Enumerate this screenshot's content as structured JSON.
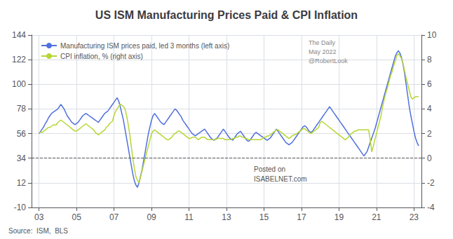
{
  "chart_data": {
    "type": "line",
    "title": "US ISM Manufacturing Prices Paid & CPI Inflation",
    "x": [
      2003,
      2003.0833,
      2003.1667,
      2003.25,
      2003.3333,
      2003.4167,
      2003.5,
      2003.5833,
      2003.6667,
      2003.75,
      2003.8333,
      2003.9167,
      2004,
      2004.0833,
      2004.1667,
      2004.25,
      2004.3333,
      2004.4167,
      2004.5,
      2004.5833,
      2004.6667,
      2004.75,
      2004.8333,
      2004.9167,
      2005,
      2005.0833,
      2005.1667,
      2005.25,
      2005.3333,
      2005.4167,
      2005.5,
      2005.5833,
      2005.6667,
      2005.75,
      2005.8333,
      2005.9167,
      2006,
      2006.0833,
      2006.1667,
      2006.25,
      2006.3333,
      2006.4167,
      2006.5,
      2006.5833,
      2006.6667,
      2006.75,
      2006.8333,
      2006.9167,
      2007,
      2007.0833,
      2007.1667,
      2007.25,
      2007.3333,
      2007.4167,
      2007.5,
      2007.5833,
      2007.6667,
      2007.75,
      2007.8333,
      2007.9167,
      2008,
      2008.0833,
      2008.1667,
      2008.25,
      2008.3333,
      2008.4167,
      2008.5,
      2008.5833,
      2008.6667,
      2008.75,
      2008.8333,
      2008.9167,
      2009,
      2009.0833,
      2009.1667,
      2009.25,
      2009.3333,
      2009.4167,
      2009.5,
      2009.5833,
      2009.6667,
      2009.75,
      2009.8333,
      2009.9167,
      2010,
      2010.0833,
      2010.1667,
      2010.25,
      2010.3333,
      2010.4167,
      2010.5,
      2010.5833,
      2010.6667,
      2010.75,
      2010.8333,
      2010.9167,
      2011,
      2011.0833,
      2011.1667,
      2011.25,
      2011.3333,
      2011.4167,
      2011.5,
      2011.5833,
      2011.6667,
      2011.75,
      2011.8333,
      2011.9167,
      2012,
      2012.0833,
      2012.1667,
      2012.25,
      2012.3333,
      2012.4167,
      2012.5,
      2012.5833,
      2012.6667,
      2012.75,
      2012.8333,
      2012.9167,
      2013,
      2013.0833,
      2013.1667,
      2013.25,
      2013.3333,
      2013.4167,
      2013.5,
      2013.5833,
      2013.6667,
      2013.75,
      2013.8333,
      2013.9167,
      2014,
      2014.0833,
      2014.1667,
      2014.25,
      2014.3333,
      2014.4167,
      2014.5,
      2014.5833,
      2014.6667,
      2014.75,
      2014.8333,
      2014.9167,
      2015,
      2015.0833,
      2015.1667,
      2015.25,
      2015.3333,
      2015.4167,
      2015.5,
      2015.5833,
      2015.6667,
      2015.75,
      2015.8333,
      2015.9167,
      2016,
      2016.0833,
      2016.1667,
      2016.25,
      2016.3333,
      2016.4167,
      2016.5,
      2016.5833,
      2016.6667,
      2016.75,
      2016.8333,
      2016.9167,
      2017,
      2017.0833,
      2017.1667,
      2017.25,
      2017.3333,
      2017.4167,
      2017.5,
      2017.5833,
      2017.6667,
      2017.75,
      2017.8333,
      2017.9167,
      2018,
      2018.0833,
      2018.1667,
      2018.25,
      2018.3333,
      2018.4167,
      2018.5,
      2018.5833,
      2018.6667,
      2018.75,
      2018.8333,
      2018.9167,
      2019,
      2019.0833,
      2019.1667,
      2019.25,
      2019.3333,
      2019.4167,
      2019.5,
      2019.5833,
      2019.6667,
      2019.75,
      2019.8333,
      2019.9167,
      2020,
      2020.0833,
      2020.1667,
      2020.25,
      2020.3333,
      2020.4167,
      2020.5,
      2020.5833,
      2020.6667,
      2020.75,
      2020.8333,
      2020.9167,
      2021,
      2021.0833,
      2021.1667,
      2021.25,
      2021.3333,
      2021.4167,
      2021.5,
      2021.5833,
      2021.6667,
      2021.75,
      2021.8333,
      2021.9167,
      2022,
      2022.0833,
      2022.1667,
      2022.25,
      2022.3333,
      2022.4167,
      2022.5,
      2022.5833,
      2022.6667,
      2022.75,
      2022.8333,
      2022.9167,
      2023,
      2023.0833,
      2023.1667,
      2023.25
    ],
    "series": [
      {
        "name": "Manufacturing ISM prices paid, led 3 months (left axis)",
        "values": [
          56,
          58,
          60,
          62,
          65,
          67,
          70,
          72,
          74,
          75,
          76,
          77,
          78,
          80,
          82,
          80,
          78,
          75,
          72,
          70,
          68,
          66,
          65,
          64,
          65,
          66,
          68,
          70,
          72,
          73,
          74,
          73,
          72,
          71,
          70,
          69,
          68,
          67,
          66,
          68,
          70,
          72,
          74,
          75,
          76,
          78,
          80,
          82,
          84,
          86,
          88,
          85,
          80,
          74,
          68,
          60,
          52,
          44,
          36,
          28,
          20,
          14,
          10,
          8,
          12,
          18,
          24,
          32,
          40,
          48,
          56,
          62,
          68,
          72,
          74,
          72,
          70,
          68,
          66,
          65,
          64,
          66,
          68,
          70,
          72,
          74,
          76,
          78,
          77,
          75,
          73,
          71,
          68,
          66,
          64,
          62,
          60,
          58,
          56,
          55,
          54,
          55,
          56,
          57,
          58,
          59,
          60,
          58,
          56,
          54,
          52,
          51,
          50,
          51,
          52,
          54,
          56,
          58,
          60,
          58,
          56,
          54,
          52,
          51,
          50,
          52,
          54,
          56,
          57,
          58,
          56,
          54,
          52,
          50,
          49,
          50,
          52,
          54,
          56,
          57,
          56,
          55,
          54,
          53,
          52,
          51,
          50,
          51,
          52,
          54,
          56,
          58,
          60,
          58,
          56,
          54,
          52,
          50,
          48,
          47,
          46,
          47,
          48,
          50,
          52,
          54,
          56,
          58,
          60,
          62,
          63,
          62,
          60,
          58,
          57,
          58,
          60,
          62,
          64,
          66,
          68,
          70,
          72,
          74,
          76,
          78,
          80,
          78,
          76,
          74,
          72,
          70,
          68,
          66,
          64,
          62,
          60,
          58,
          56,
          54,
          52,
          50,
          48,
          46,
          44,
          42,
          40,
          38,
          36,
          38,
          40,
          44,
          48,
          52,
          56,
          60,
          65,
          70,
          75,
          80,
          85,
          90,
          95,
          100,
          105,
          110,
          115,
          120,
          125,
          128,
          130,
          128,
          124,
          118,
          110,
          100,
          90,
          80,
          72,
          65,
          58,
          52,
          48,
          45
        ]
      },
      {
        "name": "CPI inflation, % (right axis)",
        "axis": "y2",
        "values": [
          2.1,
          2.1,
          2.1,
          2.2,
          2.3,
          2.4,
          2.5,
          2.5,
          2.6,
          2.7,
          2.7,
          2.7,
          2.9,
          3.0,
          3.1,
          3.0,
          2.9,
          2.8,
          2.7,
          2.6,
          2.5,
          2.4,
          2.3,
          2.2,
          2.2,
          2.3,
          2.4,
          2.5,
          2.6,
          2.7,
          2.8,
          2.7,
          2.6,
          2.5,
          2.4,
          2.3,
          2.1,
          2.0,
          1.9,
          2.0,
          2.1,
          2.2,
          2.3,
          2.5,
          2.6,
          2.8,
          2.9,
          3.0,
          3.5,
          3.8,
          4.0,
          4.2,
          4.4,
          4.3,
          4.2,
          4.0,
          3.5,
          2.8,
          2.0,
          1.0,
          0.0,
          -0.8,
          -1.5,
          -1.8,
          -2.0,
          -1.5,
          -1.0,
          -0.5,
          0.0,
          0.5,
          1.0,
          1.5,
          2.0,
          2.2,
          2.3,
          2.2,
          2.1,
          2.0,
          1.9,
          1.8,
          1.7,
          1.6,
          1.5,
          1.5,
          1.6,
          1.7,
          1.9,
          2.0,
          2.1,
          2.2,
          2.2,
          2.1,
          2.0,
          1.9,
          1.8,
          1.7,
          1.6,
          1.6,
          1.7,
          1.7,
          1.7,
          1.6,
          1.5,
          1.6,
          1.7,
          1.7,
          1.7,
          1.6,
          1.5,
          1.5,
          1.5,
          1.5,
          1.5,
          1.5,
          1.6,
          1.6,
          1.6,
          1.6,
          1.6,
          1.5,
          1.5,
          1.5,
          1.5,
          1.5,
          1.6,
          1.6,
          1.7,
          1.7,
          1.8,
          1.8,
          1.7,
          1.7,
          1.6,
          1.6,
          1.5,
          1.5,
          1.5,
          1.5,
          1.5,
          1.5,
          1.5,
          1.5,
          1.5,
          1.6,
          1.7,
          1.7,
          1.8,
          1.8,
          1.9,
          2.0,
          2.1,
          2.2,
          2.3,
          2.3,
          2.2,
          2.1,
          2.0,
          1.9,
          1.8,
          1.7,
          1.6,
          1.7,
          1.8,
          1.9,
          1.9,
          2.0,
          2.1,
          2.2,
          2.3,
          2.4,
          2.4,
          2.3,
          2.2,
          2.1,
          2.0,
          2.1,
          2.2,
          2.3,
          2.4,
          2.5,
          2.9,
          3.0,
          2.9,
          2.8,
          2.7,
          2.6,
          2.5,
          2.4,
          2.3,
          2.2,
          2.1,
          2.0,
          1.9,
          1.8,
          1.7,
          1.6,
          1.5,
          1.6,
          1.7,
          1.9,
          2.0,
          2.1,
          2.2,
          2.2,
          2.3,
          2.3,
          2.3,
          2.3,
          2.3,
          2.3,
          2.3,
          2.3,
          1.5,
          0.5,
          1.0,
          1.5,
          2.0,
          2.5,
          3.0,
          3.5,
          4.2,
          4.8,
          5.3,
          5.7,
          6.2,
          6.7,
          7.0,
          7.5,
          7.9,
          8.3,
          8.5,
          8.3,
          8.1,
          7.7,
          7.1,
          6.5,
          6.0,
          5.5,
          5.0,
          4.8,
          4.9,
          5.0,
          5.0,
          5.0
        ]
      }
    ],
    "xlim": [
      2002.6,
      2023.4
    ],
    "xticks": [
      {
        "value": 2003,
        "label": "03"
      },
      {
        "value": 2005,
        "label": "05"
      },
      {
        "value": 2007,
        "label": "07"
      },
      {
        "value": 2009,
        "label": "09"
      },
      {
        "value": 2011,
        "label": "11"
      },
      {
        "value": 2013,
        "label": "13"
      },
      {
        "value": 2015,
        "label": "15"
      },
      {
        "value": 2017,
        "label": "17"
      },
      {
        "value": 2019,
        "label": "19"
      },
      {
        "value": 2021,
        "label": "21"
      },
      {
        "value": 2023,
        "label": "23"
      }
    ],
    "ylim": [
      -10,
      144
    ],
    "yticks": [
      -10,
      12,
      34,
      56,
      78,
      100,
      122,
      144
    ],
    "y2lim": [
      -4,
      10
    ],
    "y2ticks": [
      -4,
      -2,
      0,
      2,
      4,
      6,
      8,
      10
    ],
    "grid": true,
    "legend": "upper left",
    "reference_lines": [
      {
        "axis": "y",
        "value": 34,
        "line_style": "dashed"
      }
    ],
    "annotations": [
      "Posted on",
      "ISABELNET.com",
      "Source:  ISM,  BLS",
      "The Daily",
      "May 2022",
      "@RobertLook"
    ]
  }
}
